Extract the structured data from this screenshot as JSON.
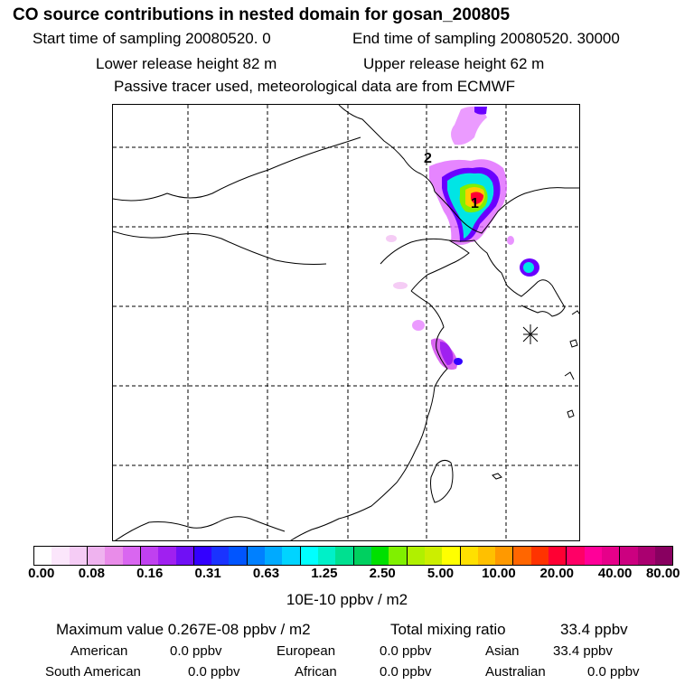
{
  "header": {
    "title": "CO  source contributions in nested domain for gosan_200805",
    "start_label": "Start time of sampling 20080520.     0",
    "end_label": "End time of sampling 20080520. 30000",
    "lower_label": "Lower release height   82 m",
    "upper_label": "Upper release height   62 m",
    "tracer_note": "Passive tracer used, meteorological data are from ECMWF"
  },
  "map": {
    "markers": [
      {
        "label": "1",
        "desc": "maximum contribution marker"
      },
      {
        "label": "2",
        "desc": "secondary marker"
      }
    ],
    "receptor": "star-icon",
    "plume_colors": [
      "#e066ff",
      "#6a00ff",
      "#00e5e5",
      "#ffcc00",
      "#ff0033"
    ]
  },
  "colorbar": {
    "colors": [
      "#ffffff",
      "#fbe6fb",
      "#f5ccf5",
      "#efb3ef",
      "#e98ce9",
      "#d966f0",
      "#c040f0",
      "#a020f0",
      "#7010f5",
      "#3300ff",
      "#1a33ff",
      "#0055ff",
      "#0080ff",
      "#00aaff",
      "#00d4ff",
      "#00ffff",
      "#00f0c8",
      "#00e090",
      "#00d060",
      "#00e000",
      "#80f000",
      "#b0f000",
      "#ccee00",
      "#ffff00",
      "#ffe000",
      "#ffc000",
      "#ff9900",
      "#ff6600",
      "#ff3300",
      "#ff0033",
      "#ff0066",
      "#ff0099",
      "#e6008a",
      "#cc0080",
      "#aa0070",
      "#880060"
    ],
    "ticks": [
      "0.00",
      "0.08",
      "0.16",
      "0.31",
      "0.63",
      "1.25",
      "2.50",
      "5.00",
      "10.00",
      "20.00",
      "40.00",
      "80.00"
    ],
    "unit": "10E-10 ppbv / m2"
  },
  "stats": {
    "max_label": "Maximum value  0.267E-08 ppbv / m2",
    "total_label": "Total mixing ratio",
    "total_value": "33.4 ppbv",
    "regions": [
      {
        "name": "American",
        "value": "0.0 ppbv"
      },
      {
        "name": "European",
        "value": "0.0 ppbv"
      },
      {
        "name": "Asian",
        "value": "33.4 ppbv"
      },
      {
        "name": "South American",
        "value": "0.0 ppbv"
      },
      {
        "name": "African",
        "value": "0.0 ppbv"
      },
      {
        "name": "Australian",
        "value": "0.0 ppbv"
      }
    ]
  }
}
